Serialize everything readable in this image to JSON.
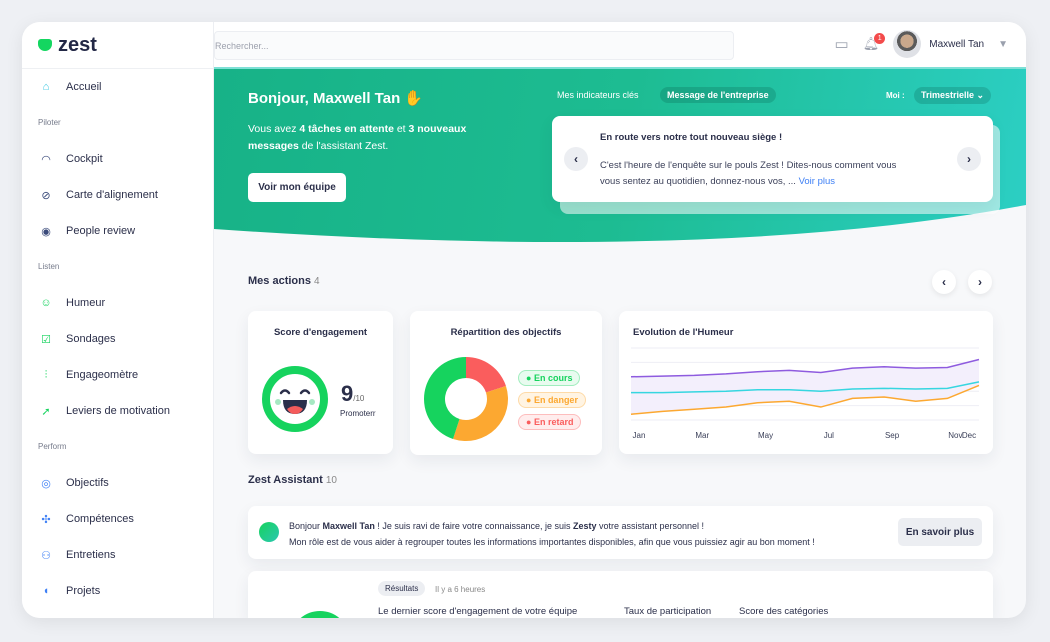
{
  "brand": {
    "name": "zest",
    "accent": "#14d660"
  },
  "header": {
    "search_placeholder": "Rechercher...",
    "notifications_count": "1",
    "user_name": "Maxwell Tan"
  },
  "sidebar": {
    "items": [
      {
        "label": "Accueil",
        "icon": "home-icon"
      },
      {
        "section": "Piloter"
      },
      {
        "label": "Cockpit",
        "icon": "gauge-icon"
      },
      {
        "label": "Carte d'alignement",
        "icon": "compass-icon"
      },
      {
        "label": "People review",
        "icon": "user-search-icon"
      },
      {
        "section": "Listen"
      },
      {
        "label": "Humeur",
        "icon": "smiley-icon"
      },
      {
        "label": "Sondages",
        "icon": "checkbox-icon"
      },
      {
        "label": "Engageomètre",
        "icon": "sliders-icon"
      },
      {
        "label": "Leviers de motivation",
        "icon": "arrow-circle-icon"
      },
      {
        "section": "Perform"
      },
      {
        "label": "Objectifs",
        "icon": "target-icon"
      },
      {
        "label": "Compétences",
        "icon": "puzzle-icon"
      },
      {
        "label": "Entretiens",
        "icon": "users-icon"
      },
      {
        "label": "Projets",
        "icon": "projects-icon"
      }
    ]
  },
  "banner": {
    "greeting": "Bonjour, Maxwell Tan",
    "wave": "✋",
    "msg_1": "Vous avez ",
    "msg_2": "4 tâches en attente",
    "msg_3": " et ",
    "msg_4": "3 nouveaux messages",
    "msg_5": " de l'assistant Zest.",
    "team_button": "Voir mon équipe",
    "tab_indicators": "Mes indicateurs clés",
    "tab_message": "Message de l'entreprise",
    "period_label": "Moi :",
    "period_value": "Trimestrielle",
    "message_title": "En route vers notre tout nouveau siège !",
    "message_body": "C'est l'heure de l'enquête sur le pouls Zest ! Dites-nous comment vous vous sentez au quotidien, donnez-nous vos, ...",
    "message_link": "Voir plus"
  },
  "actions": {
    "title": "Mes actions",
    "count": "4"
  },
  "engagement": {
    "title": "Score d'engagement",
    "score": "9",
    "max": "/10",
    "label": "Promoterr",
    "score_value": 9
  },
  "objectives": {
    "title": "Répartition des objectifs",
    "segments": [
      {
        "label": "En cours",
        "value": 45,
        "color": "#16d35e"
      },
      {
        "label": "En danger",
        "value": 35,
        "color": "#fca831"
      },
      {
        "label": "En retard",
        "value": 20,
        "color": "#fa5d5d"
      }
    ]
  },
  "chart_data": {
    "type": "line",
    "title": "Evolution de l'Humeur",
    "x": [
      "Jan",
      "Feb",
      "Mar",
      "Apr",
      "May",
      "Jun",
      "Jul",
      "Aug",
      "Sep",
      "Oct",
      "Nov",
      "Dec"
    ],
    "x_tick_labels": [
      "Jan",
      "Mar",
      "May",
      "Jul",
      "Sep",
      "Nov",
      "Dec"
    ],
    "ylim": [
      0,
      5
    ],
    "grid": true,
    "series": [
      {
        "color": "#8e5bdf",
        "values": [
          3.0,
          3.05,
          3.1,
          3.2,
          3.35,
          3.45,
          3.3,
          3.6,
          3.7,
          3.6,
          3.65,
          4.2
        ]
      },
      {
        "color": "#36d6e0",
        "values": [
          1.9,
          1.9,
          1.95,
          2.0,
          2.1,
          2.1,
          2.0,
          2.15,
          2.2,
          2.15,
          2.2,
          2.65
        ]
      },
      {
        "color": "#fca831",
        "values": [
          0.4,
          0.6,
          0.75,
          0.9,
          1.2,
          1.3,
          0.9,
          1.5,
          1.6,
          1.3,
          1.5,
          2.4
        ]
      }
    ]
  },
  "assistant": {
    "title": "Zest Assistant",
    "count": "10",
    "l1a": "Bonjour ",
    "l1b": "Maxwell Tan",
    "l1c": " ! Je suis ravi de faire votre connaissance, je suis ",
    "l1d": "Zesty",
    "l1e": " votre assistant personnel !",
    "l2": "Mon rôle est de vous aider à regrouper toutes les informations importantes disponibles, afin que vous puissiez agir au bon moment !",
    "button": "En savoir plus"
  },
  "results": {
    "tag": "Résultats",
    "time": "Il y a 6 heures",
    "col1": "Le dernier score d'engagement de votre équipe",
    "col2": "Taux de participation",
    "col3": "Score des catégories"
  }
}
